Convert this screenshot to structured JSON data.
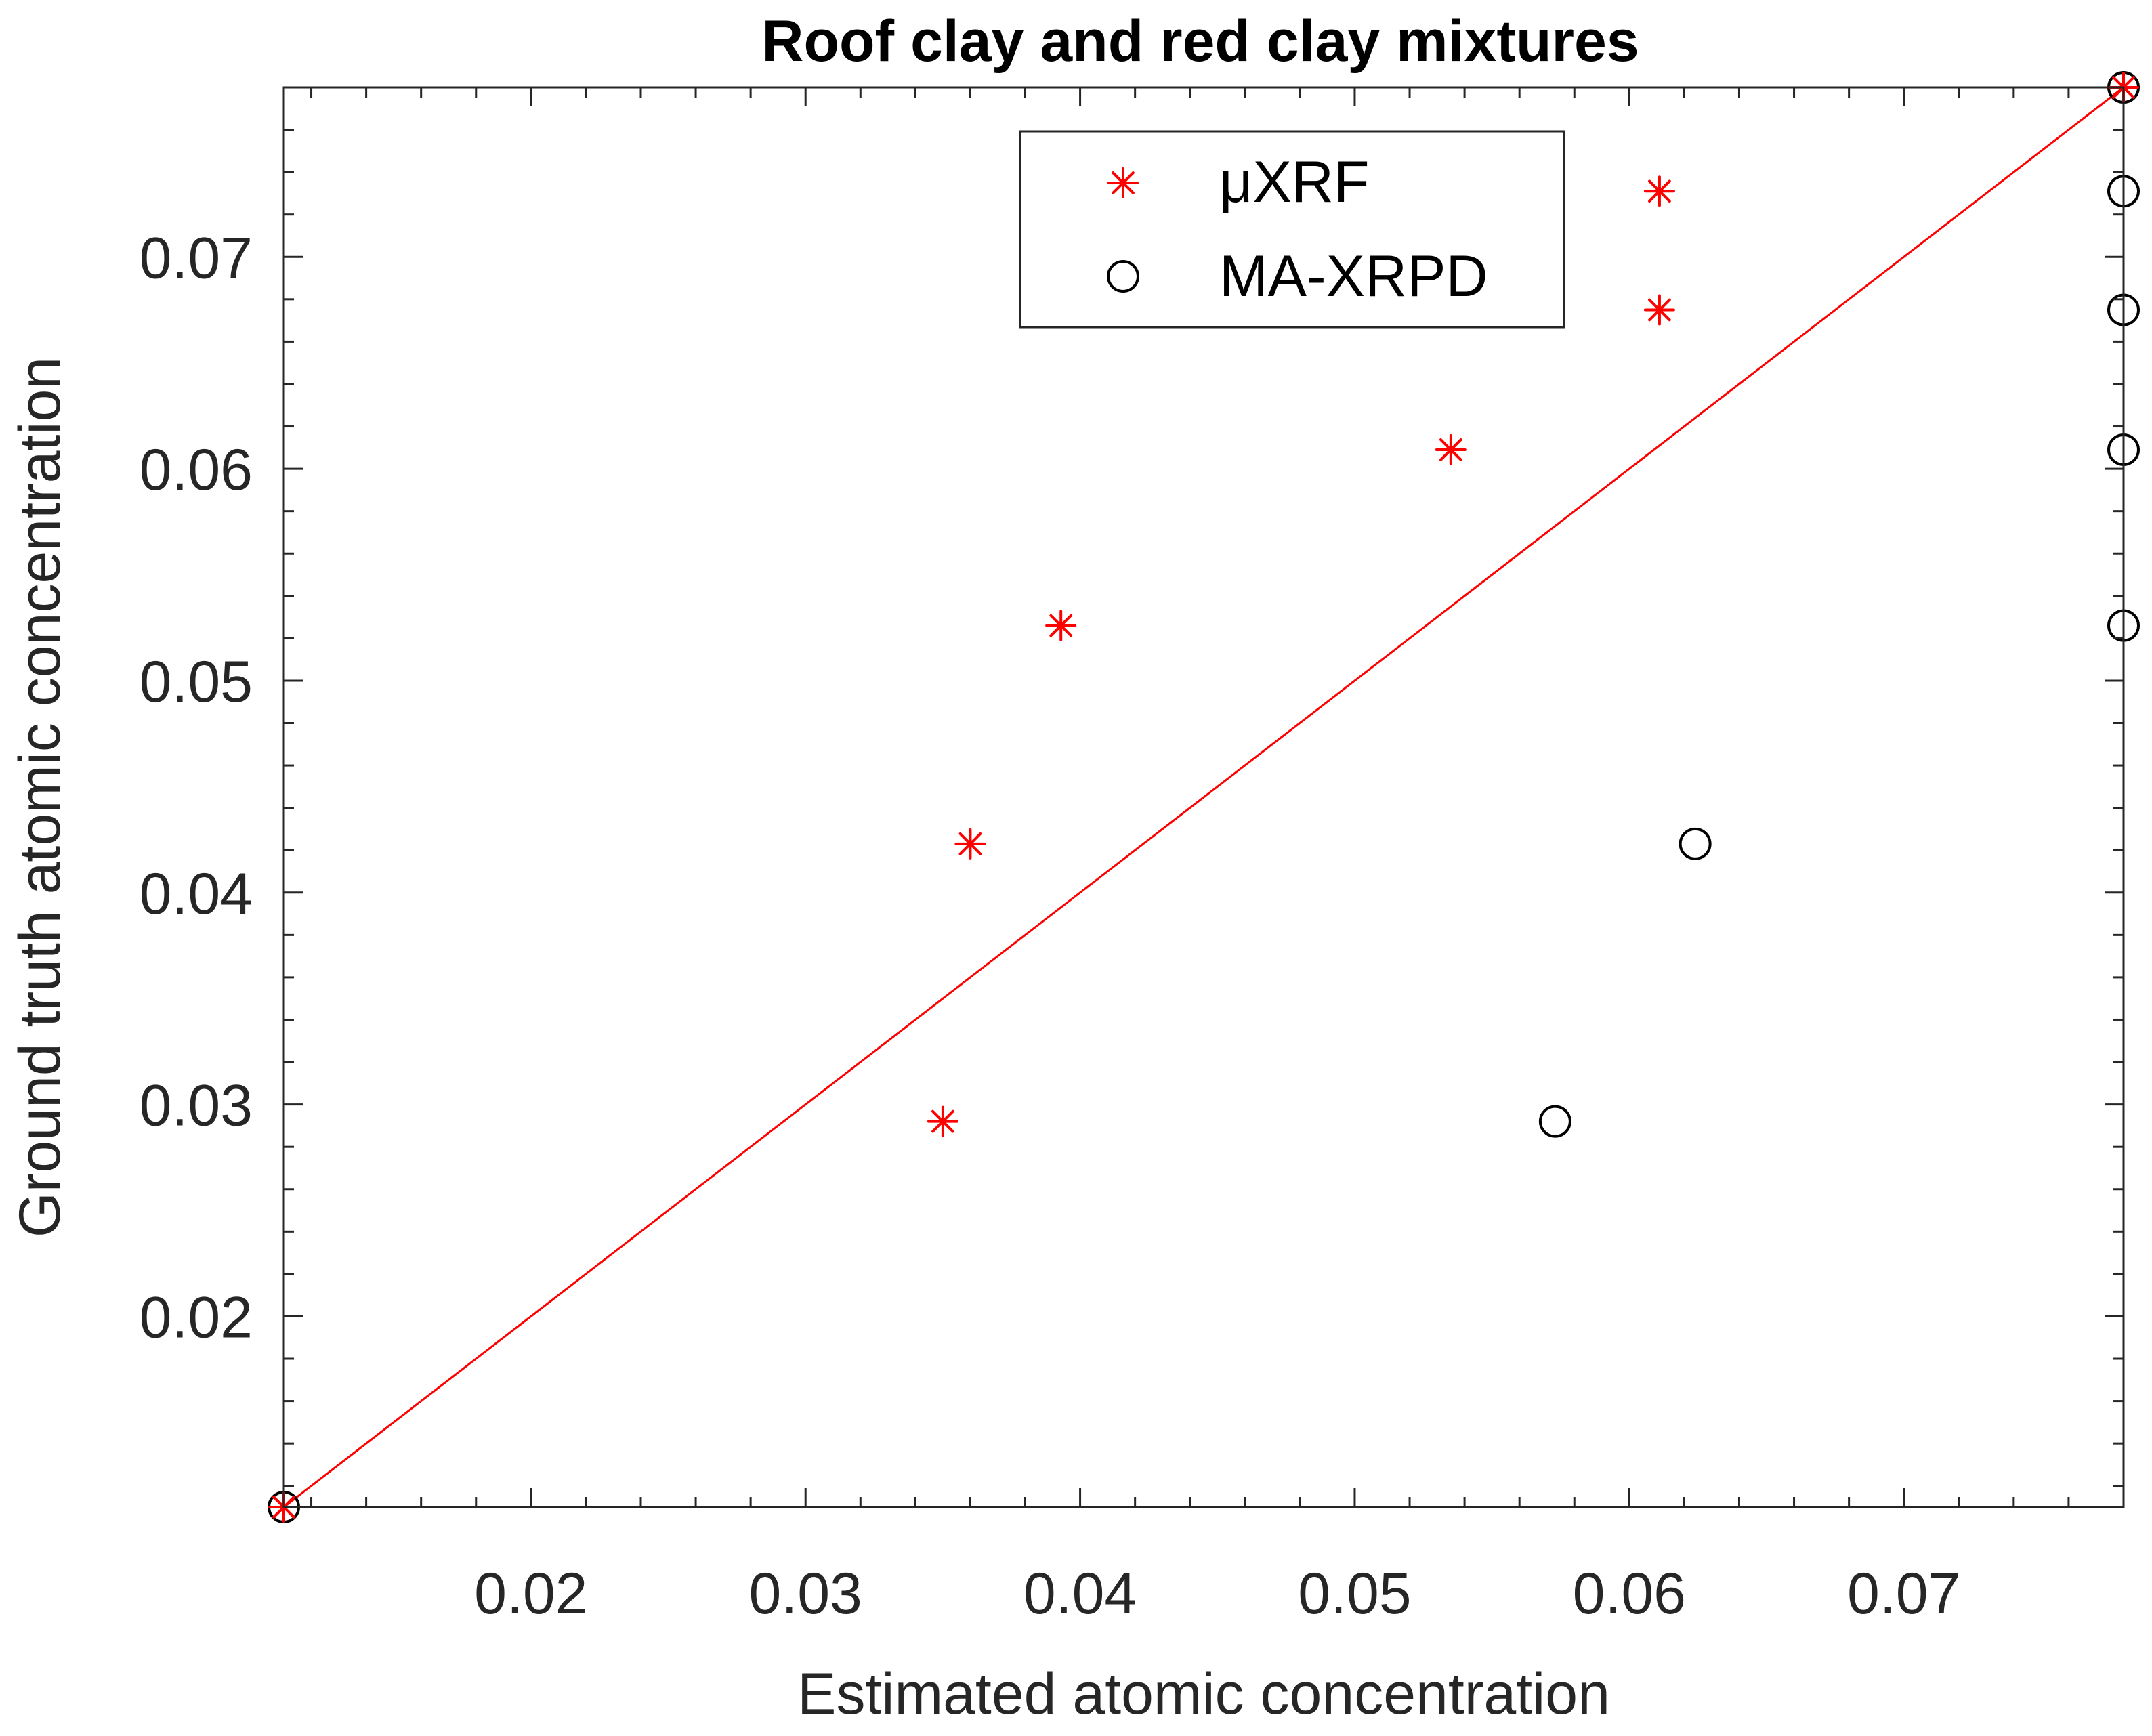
{
  "chart_data": {
    "type": "scatter",
    "title": "Roof clay and red clay mixtures",
    "xlabel": "Estimated atomic concentration",
    "ylabel": "Ground truth atomic concentration",
    "xlim": [
      0.011,
      0.078
    ],
    "ylim": [
      0.011,
      0.078
    ],
    "xticks": [
      0.02,
      0.03,
      0.04,
      0.05,
      0.06,
      0.07
    ],
    "yticks": [
      0.02,
      0.03,
      0.04,
      0.05,
      0.06,
      0.07
    ],
    "xtick_labels": [
      "0.02",
      "0.03",
      "0.04",
      "0.05",
      "0.06",
      "0.07"
    ],
    "ytick_labels": [
      "0.02",
      "0.03",
      "0.04",
      "0.05",
      "0.06",
      "0.07"
    ],
    "grid": false,
    "legend_position": "top-center",
    "reference_line": {
      "from": [
        0.011,
        0.011
      ],
      "to": [
        0.078,
        0.078
      ],
      "color": "#ff0000"
    },
    "series": [
      {
        "name": "μXRF",
        "marker": "asterisk",
        "color": "#ff0000",
        "points": [
          [
            0.011,
            0.011
          ],
          [
            0.035,
            0.0292
          ],
          [
            0.036,
            0.0423
          ],
          [
            0.0393,
            0.0526
          ],
          [
            0.0535,
            0.0609
          ],
          [
            0.0611,
            0.0675
          ],
          [
            0.0611,
            0.0731
          ],
          [
            0.078,
            0.078
          ]
        ]
      },
      {
        "name": "MA-XRPD",
        "marker": "circle",
        "color": "#000000",
        "points": [
          [
            0.011,
            0.011
          ],
          [
            0.0573,
            0.0292
          ],
          [
            0.0624,
            0.0423
          ],
          [
            0.078,
            0.0526
          ],
          [
            0.078,
            0.0609
          ],
          [
            0.078,
            0.0675
          ],
          [
            0.078,
            0.0731
          ],
          [
            0.078,
            0.078
          ]
        ]
      }
    ]
  }
}
